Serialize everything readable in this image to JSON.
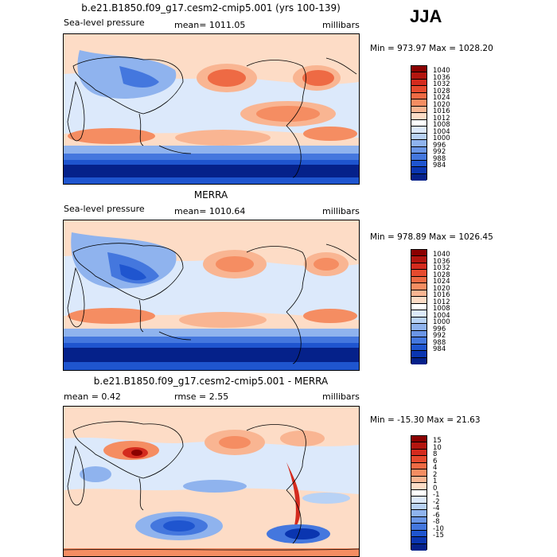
{
  "season": "JJA",
  "panels": [
    {
      "title": "b.e21.B1850.f09_g17.cesm2-cmip5.001 (yrs 100-139)",
      "left_label": "Sea-level pressure",
      "center_label": "mean= 1011.05",
      "right_label": "millibars",
      "minmax": "Min = 973.97 Max = 1028.20",
      "colorbar": {
        "labels": [
          "1040",
          "1036",
          "1032",
          "1028",
          "1024",
          "1020",
          "1016",
          "1012",
          "1008",
          "1004",
          "1000",
          "996",
          "992",
          "988",
          "984"
        ],
        "colors": [
          "#8b0000",
          "#b3150f",
          "#d42b1e",
          "#e64a2e",
          "#ee6a44",
          "#f58d62",
          "#f9b592",
          "#fddcc6",
          "#ffffff",
          "#dce9fb",
          "#b8d2f5",
          "#8fb3ee",
          "#6a95e6",
          "#4477de",
          "#1f55cf",
          "#0a35b0",
          "#05218a"
        ]
      }
    },
    {
      "title": "MERRA",
      "left_label": "Sea-level pressure",
      "center_label": "mean= 1010.64",
      "right_label": "millibars",
      "minmax": "Min = 978.89 Max = 1026.45",
      "colorbar": {
        "labels": [
          "1040",
          "1036",
          "1032",
          "1028",
          "1024",
          "1020",
          "1016",
          "1012",
          "1008",
          "1004",
          "1000",
          "996",
          "992",
          "988",
          "984"
        ],
        "colors": [
          "#8b0000",
          "#b3150f",
          "#d42b1e",
          "#e64a2e",
          "#ee6a44",
          "#f58d62",
          "#f9b592",
          "#fddcc6",
          "#ffffff",
          "#dce9fb",
          "#b8d2f5",
          "#8fb3ee",
          "#6a95e6",
          "#4477de",
          "#1f55cf",
          "#0a35b0",
          "#05218a"
        ]
      }
    },
    {
      "title": "b.e21.B1850.f09_g17.cesm2-cmip5.001 - MERRA",
      "left_label": "mean =   0.42",
      "center_label": "rmse =   2.55",
      "right_label": "millibars",
      "minmax": "Min = -15.30 Max =  21.63",
      "colorbar": {
        "labels": [
          "15",
          "10",
          "8",
          "6",
          "4",
          "2",
          "1",
          "0",
          "-1",
          "-2",
          "-4",
          "-6",
          "-8",
          "-10",
          "-15"
        ],
        "colors": [
          "#8b0000",
          "#b3150f",
          "#d42b1e",
          "#e64a2e",
          "#ee6a44",
          "#f58d62",
          "#f9b592",
          "#fddcc6",
          "#ffffff",
          "#dce9fb",
          "#b8d2f5",
          "#8fb3ee",
          "#6a95e6",
          "#4477de",
          "#1f55cf",
          "#0a35b0",
          "#05218a"
        ]
      }
    }
  ]
}
